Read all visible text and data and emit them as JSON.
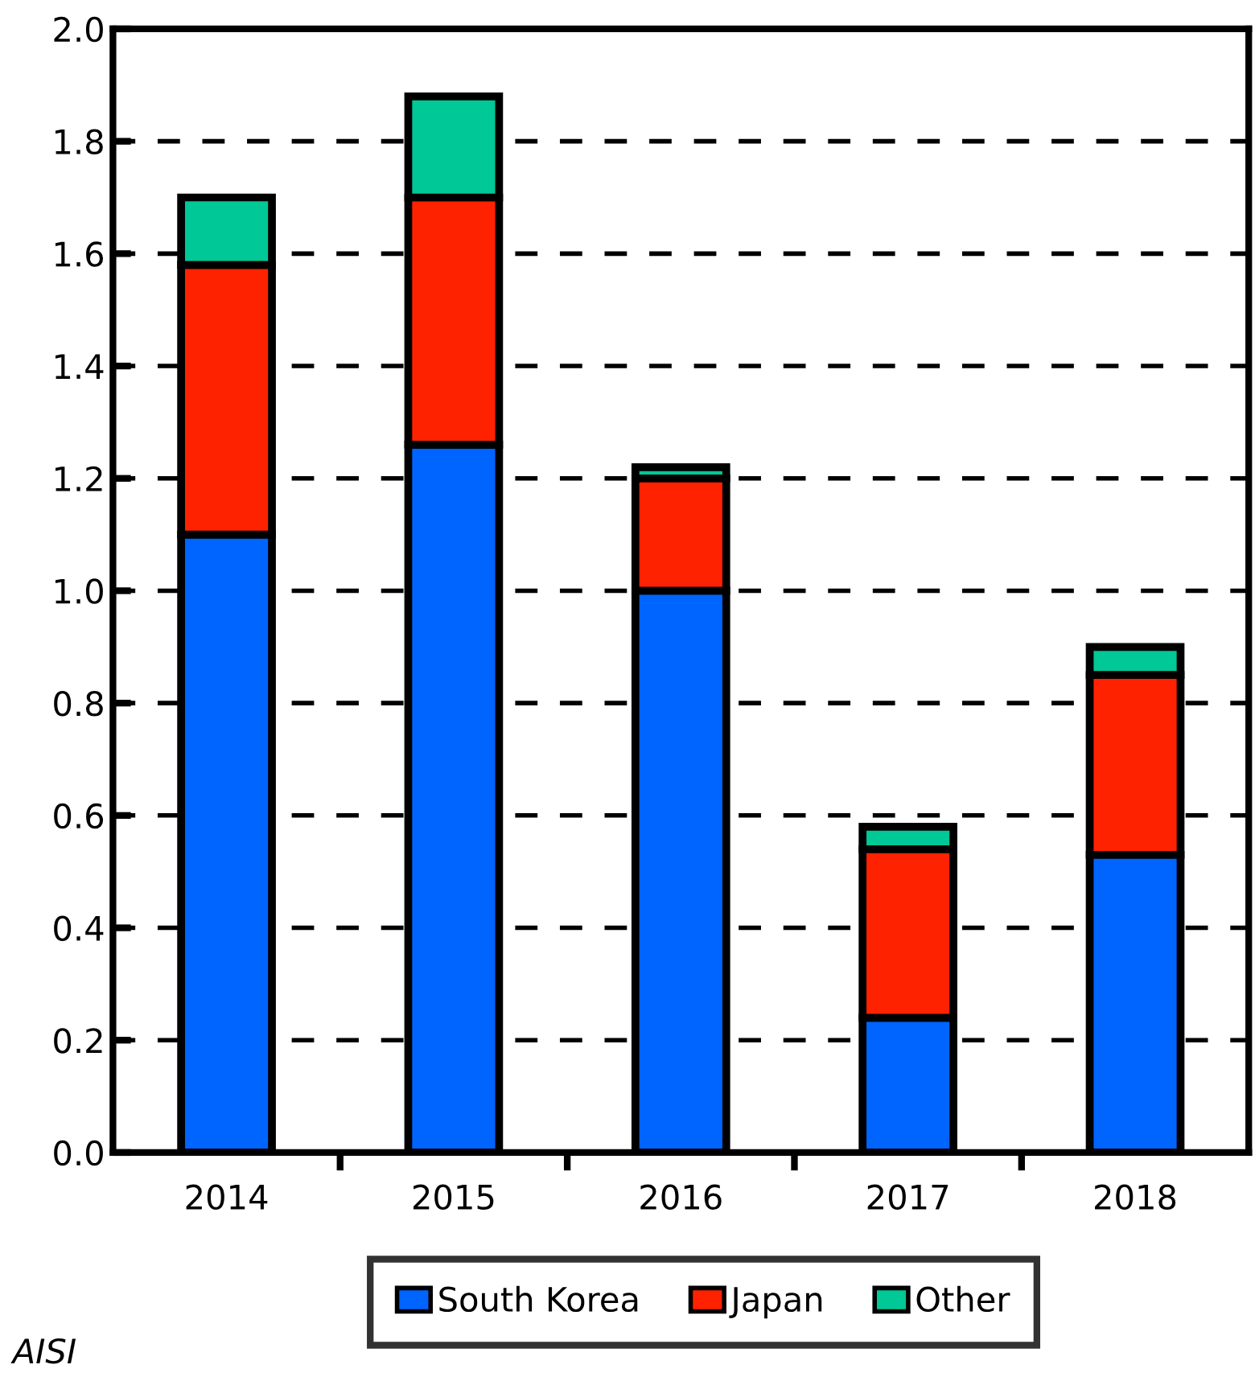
{
  "chart_data": {
    "type": "bar",
    "stacked": true,
    "categories": [
      "2014",
      "2015",
      "2016",
      "2017",
      "2018"
    ],
    "series": [
      {
        "name": "South Korea",
        "color": "#0064ff",
        "values": [
          1.1,
          1.26,
          1.0,
          0.24,
          0.53
        ]
      },
      {
        "name": "Japan",
        "color": "#ff2200",
        "values": [
          0.48,
          0.44,
          0.2,
          0.3,
          0.32
        ]
      },
      {
        "name": "Other",
        "color": "#00c896",
        "values": [
          0.12,
          0.18,
          0.02,
          0.04,
          0.05
        ]
      }
    ],
    "ylim": [
      0,
      2.0
    ],
    "yticks": [
      {
        "value": 0,
        "label": "0.0"
      },
      {
        "value": 0.2,
        "label": "0.2"
      },
      {
        "value": 0.4,
        "label": "0.4"
      },
      {
        "value": 0.6,
        "label": "0.6"
      },
      {
        "value": 0.8,
        "label": "0.8"
      },
      {
        "value": 1.0,
        "label": "1.0"
      },
      {
        "value": 1.2,
        "label": "1.2"
      },
      {
        "value": 1.4,
        "label": "1.4"
      },
      {
        "value": 1.6,
        "label": "1.6"
      },
      {
        "value": 1.8,
        "label": "1.8"
      },
      {
        "value": 2.0,
        "label": "2.0"
      }
    ],
    "grid": "y",
    "legend": "bottom",
    "annotations": [
      "AISI"
    ]
  }
}
